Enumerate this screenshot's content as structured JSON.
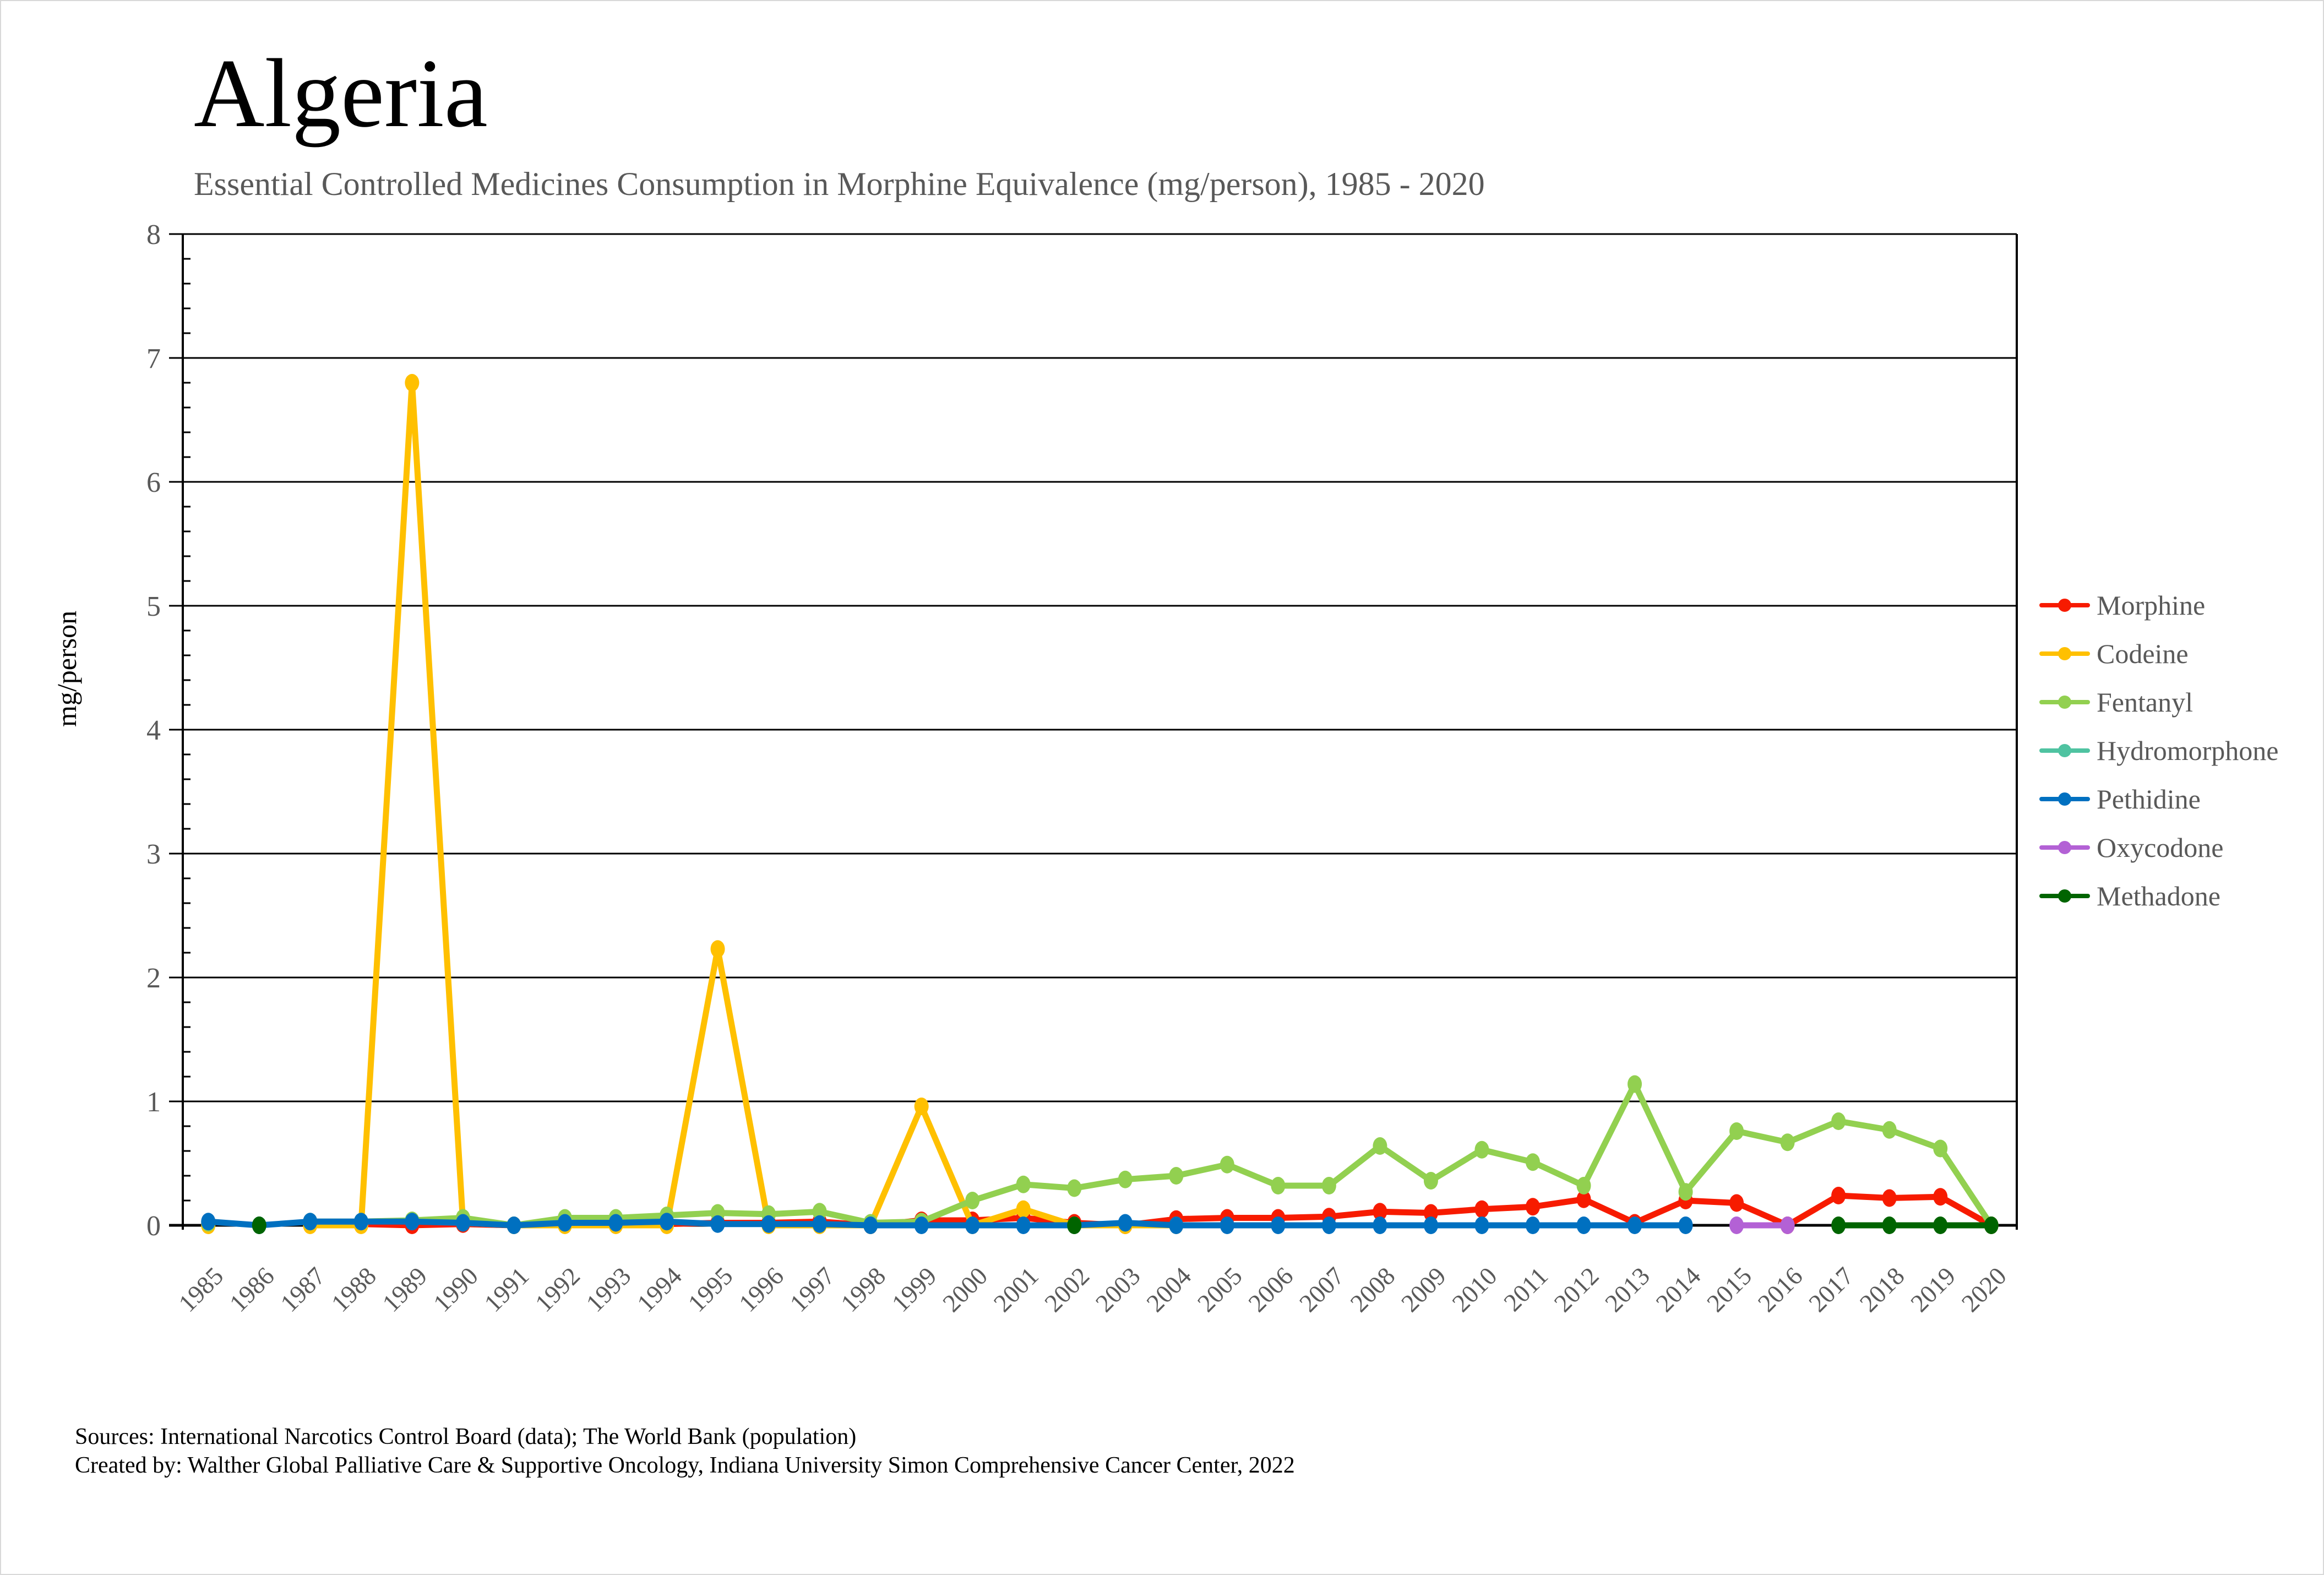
{
  "header": {
    "title": "Algeria",
    "subtitle": "Essential Controlled Medicines Consumption in Morphine Equivalence (mg/person), 1985 - 2020"
  },
  "footer": {
    "sources": "Sources: International Narcotics Control Board (data); The World Bank (population)",
    "created_by": "Created by: Walther Global Palliative Care & Supportive Oncology, Indiana University Simon Comprehensive Cancer Center, 2022"
  },
  "chart_data": {
    "type": "line",
    "title": "Algeria",
    "subtitle": "Essential Controlled Medicines Consumption in Morphine Equivalence (mg/person), 1985 - 2020",
    "xlabel": "",
    "ylabel": "mg/person",
    "ylim": [
      0,
      8
    ],
    "yticks": [
      "0",
      "1",
      "2",
      "3",
      "4",
      "5",
      "6",
      "7",
      "8"
    ],
    "grid": true,
    "legend_position": "right",
    "x": [
      "1985",
      "1986",
      "1987",
      "1988",
      "1989",
      "1990",
      "1991",
      "1992",
      "1993",
      "1994",
      "1995",
      "1996",
      "1997",
      "1998",
      "1999",
      "2000",
      "2001",
      "2002",
      "2003",
      "2004",
      "2005",
      "2006",
      "2007",
      "2008",
      "2009",
      "2010",
      "2011",
      "2012",
      "2013",
      "2014",
      "2015",
      "2016",
      "2017",
      "2018",
      "2019",
      "2020"
    ],
    "series": [
      {
        "name": "Morphine",
        "color": "#f71b00",
        "values": [
          0.01,
          null,
          0.01,
          0.01,
          0.0,
          0.01,
          0.0,
          0.01,
          0.01,
          0.01,
          0.02,
          0.02,
          0.03,
          0.0,
          0.04,
          0.04,
          0.06,
          0.02,
          0.0,
          0.05,
          0.06,
          0.06,
          0.07,
          0.11,
          0.1,
          0.13,
          0.15,
          0.21,
          0.02,
          0.2,
          0.18,
          0.0,
          0.24,
          0.22,
          0.23,
          0.0
        ]
      },
      {
        "name": "Codeine",
        "color": "#ffc000",
        "values": [
          0.0,
          null,
          0.0,
          0.0,
          6.8,
          0.02,
          0.0,
          0.0,
          0.0,
          0.0,
          2.23,
          0.0,
          0.0,
          0.0,
          0.96,
          0.0,
          0.13,
          0.0,
          0.0,
          0.0,
          null,
          null,
          null,
          null,
          null,
          null,
          null,
          null,
          null,
          null,
          null,
          null,
          null,
          null,
          null,
          null
        ]
      },
      {
        "name": "Fentanyl",
        "color": "#92d050",
        "values": [
          0.02,
          null,
          0.03,
          0.03,
          0.04,
          0.06,
          0.0,
          0.06,
          0.06,
          0.08,
          0.1,
          0.09,
          0.11,
          0.02,
          0.03,
          0.2,
          0.33,
          0.3,
          0.37,
          0.4,
          0.49,
          0.32,
          0.32,
          0.64,
          0.36,
          0.61,
          0.51,
          0.32,
          1.14,
          0.27,
          0.76,
          0.67,
          0.84,
          0.77,
          0.62,
          0.0
        ]
      },
      {
        "name": "Hydromorphone",
        "color": "#4fc3a1",
        "values": []
      },
      {
        "name": "Pethidine",
        "color": "#0070c0",
        "values": [
          0.03,
          0.0,
          0.03,
          0.03,
          0.03,
          0.02,
          0.0,
          0.02,
          0.02,
          0.03,
          0.01,
          0.01,
          0.01,
          0.0,
          0.0,
          0.0,
          0.0,
          0.0,
          0.02,
          0.0,
          0.0,
          0.0,
          0.0,
          0.0,
          0.0,
          0.0,
          0.0,
          0.0,
          0.0,
          0.0,
          null,
          null,
          null,
          null,
          null,
          null
        ]
      },
      {
        "name": "Oxycodone",
        "color": "#b361d5",
        "values": [
          null,
          null,
          null,
          null,
          null,
          null,
          null,
          null,
          null,
          null,
          null,
          null,
          null,
          null,
          null,
          null,
          null,
          null,
          null,
          null,
          null,
          null,
          null,
          null,
          null,
          null,
          null,
          null,
          null,
          null,
          0.0,
          0.0,
          null,
          null,
          null,
          null
        ]
      },
      {
        "name": "Methadone",
        "color": "#006400",
        "values": [
          null,
          0.0,
          null,
          null,
          null,
          null,
          null,
          null,
          null,
          null,
          null,
          null,
          null,
          null,
          null,
          null,
          null,
          0.0,
          null,
          null,
          null,
          null,
          null,
          null,
          null,
          null,
          null,
          null,
          null,
          null,
          null,
          null,
          0.0,
          0.0,
          0.0,
          0.0
        ]
      }
    ]
  }
}
